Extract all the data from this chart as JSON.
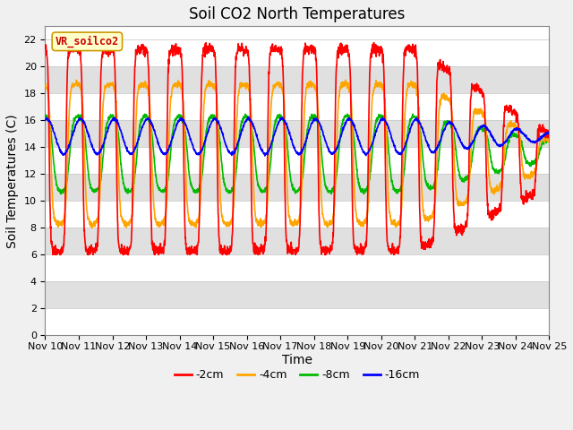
{
  "title": "Soil CO2 North Temperatures",
  "xlabel": "Time",
  "ylabel": "Soil Temperatures (C)",
  "yticks": [
    0,
    2,
    4,
    6,
    8,
    10,
    12,
    14,
    16,
    18,
    20,
    22
  ],
  "ylim": [
    0,
    23
  ],
  "xtick_labels": [
    "Nov 10",
    "Nov 11",
    "Nov 12",
    "Nov 13",
    "Nov 14",
    "Nov 15",
    "Nov 16",
    "Nov 17",
    "Nov 18",
    "Nov 19",
    "Nov 20",
    "Nov 21",
    "Nov 22",
    "Nov 23",
    "Nov 24",
    "Nov 25"
  ],
  "line_colors": [
    "#ff0000",
    "#ffa500",
    "#00bb00",
    "#0000ff"
  ],
  "line_labels": [
    "-2cm",
    "-4cm",
    "-8cm",
    "-16cm"
  ],
  "legend_label": "VR_soilco2",
  "legend_bg": "#ffffcc",
  "legend_edge": "#cc9900",
  "bg_band_color": "#e0e0e0",
  "title_fontsize": 12,
  "axis_label_fontsize": 10,
  "tick_fontsize": 8,
  "line_width": 1.2
}
